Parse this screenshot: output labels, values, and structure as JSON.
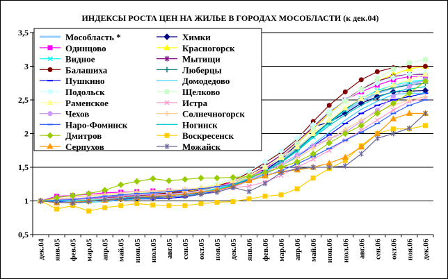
{
  "chart_data": {
    "type": "line",
    "title": "ИНДЕКСЫ РОСТА ЦЕН НА ЖИЛЬЕ В ГОРОДАХ МОСОБЛАСТИ (к дек.04)",
    "ylim": [
      0.5,
      3.5
    ],
    "yticks": [
      "0,5",
      "1",
      "1,5",
      "2",
      "2,5",
      "3",
      "3,5"
    ],
    "ytick_values": [
      0.5,
      1,
      1.5,
      2,
      2.5,
      3,
      3.5
    ],
    "grid": "horizontal",
    "legend_position": "top-left",
    "categories": [
      "дек.04",
      "янв.05",
      "фев.05",
      "мар.05",
      "апр.05",
      "май.05",
      "июн.05",
      "июл.05",
      "авг.05",
      "сен.05",
      "окт.05",
      "ноя.05",
      "дек.05",
      "янв.06",
      "фев.06",
      "мар.06",
      "апр.06",
      "май.06",
      "июн.06",
      "июл.06",
      "авг.06",
      "сен.06",
      "окт.06",
      "ноя.06",
      "дек.06"
    ],
    "series": [
      {
        "name": "Мособласть *",
        "color": "#99ccff",
        "marker": "none",
        "width": 3,
        "values": [
          1,
          1.01,
          1.02,
          1.04,
          1.06,
          1.08,
          1.1,
          1.11,
          1.12,
          1.14,
          1.17,
          1.2,
          1.26,
          1.35,
          1.47,
          1.6,
          1.78,
          1.98,
          2.16,
          2.33,
          2.48,
          2.6,
          2.68,
          2.74,
          2.8
        ]
      },
      {
        "name": "Химки",
        "color": "#000080",
        "marker": "diamond",
        "values": [
          1,
          1.0,
          1.0,
          1.01,
          1.02,
          1.03,
          1.04,
          1.05,
          1.06,
          1.08,
          1.12,
          1.16,
          1.25,
          1.32,
          1.45,
          1.62,
          1.84,
          2.1,
          2.17,
          2.3,
          2.45,
          2.55,
          2.62,
          2.63,
          2.64
        ]
      },
      {
        "name": "Одинцово",
        "color": "#ff00ff",
        "marker": "square",
        "values": [
          1,
          1.07,
          1.08,
          1.1,
          1.12,
          1.13,
          1.14,
          1.15,
          1.15,
          1.16,
          1.18,
          1.22,
          1.28,
          1.36,
          1.48,
          1.65,
          1.85,
          2.06,
          2.3,
          2.5,
          2.62,
          2.72,
          2.8,
          2.85,
          2.85
        ]
      },
      {
        "name": "Красногорск",
        "color": "#ffff00",
        "marker": "triangle",
        "values": [
          1,
          1.02,
          1.03,
          1.05,
          1.07,
          1.08,
          1.09,
          1.1,
          1.12,
          1.14,
          1.17,
          1.2,
          1.27,
          1.36,
          1.5,
          1.66,
          1.86,
          2.08,
          2.3,
          2.5,
          2.66,
          2.78,
          2.88,
          2.96,
          3.0
        ]
      },
      {
        "name": "Видное",
        "color": "#00ffff",
        "marker": "x",
        "values": [
          1,
          1.0,
          1.01,
          1.02,
          1.03,
          1.05,
          1.06,
          1.07,
          1.08,
          1.1,
          1.14,
          1.18,
          1.24,
          1.33,
          1.44,
          1.58,
          1.75,
          1.95,
          2.15,
          2.35,
          2.52,
          2.64,
          2.72,
          2.77,
          2.8
        ]
      },
      {
        "name": "Мытищи",
        "color": "#800080",
        "marker": "star",
        "values": [
          1,
          1.02,
          1.02,
          1.03,
          1.05,
          1.06,
          1.08,
          1.09,
          1.11,
          1.13,
          1.16,
          1.2,
          1.27,
          1.38,
          1.52,
          1.68,
          1.88,
          2.1,
          2.32,
          2.5,
          2.66,
          2.78,
          2.85,
          2.88,
          2.88
        ]
      },
      {
        "name": "Балашиха",
        "color": "#800000",
        "marker": "circle",
        "values": [
          1,
          1.0,
          1.01,
          1.02,
          1.04,
          1.06,
          1.08,
          1.1,
          1.12,
          1.15,
          1.18,
          1.22,
          1.3,
          1.42,
          1.57,
          1.72,
          1.92,
          2.18,
          2.42,
          2.62,
          2.8,
          2.92,
          2.98,
          3.0,
          3.0
        ]
      },
      {
        "name": "Люберцы",
        "color": "#008080",
        "marker": "plus",
        "values": [
          1,
          1.0,
          1.0,
          1.01,
          1.02,
          1.03,
          1.05,
          1.06,
          1.08,
          1.1,
          1.13,
          1.17,
          1.23,
          1.32,
          1.44,
          1.58,
          1.76,
          1.97,
          2.17,
          2.36,
          2.52,
          2.62,
          2.68,
          2.72,
          2.75
        ]
      },
      {
        "name": "Пушкино",
        "color": "#0000ff",
        "marker": "dash",
        "values": [
          1,
          0.99,
          1.0,
          1.0,
          1.01,
          1.02,
          1.03,
          1.03,
          1.04,
          1.06,
          1.1,
          1.15,
          1.22,
          1.3,
          1.4,
          1.52,
          1.66,
          1.82,
          1.98,
          2.15,
          2.3,
          2.42,
          2.5,
          2.55,
          2.6
        ]
      },
      {
        "name": "Домодедово",
        "color": "#33ccff",
        "marker": "none",
        "values": [
          1,
          0.98,
          0.97,
          0.98,
          0.99,
          1.01,
          1.03,
          1.04,
          1.06,
          1.08,
          1.11,
          1.16,
          1.22,
          1.3,
          1.4,
          1.52,
          1.66,
          1.84,
          2.02,
          2.2,
          2.36,
          2.48,
          2.58,
          2.6,
          2.6
        ]
      },
      {
        "name": "Подольск",
        "color": "#ccffff",
        "marker": "diamond",
        "values": [
          1,
          1.02,
          1.03,
          1.05,
          1.07,
          1.09,
          1.1,
          1.12,
          1.14,
          1.17,
          1.2,
          1.25,
          1.33,
          1.44,
          1.58,
          1.74,
          1.93,
          2.13,
          2.33,
          2.5,
          2.64,
          2.75,
          2.83,
          2.88,
          2.9
        ]
      },
      {
        "name": "Щелково",
        "color": "#ccffcc",
        "marker": "square",
        "values": [
          1,
          1.0,
          1.01,
          1.02,
          1.03,
          1.05,
          1.06,
          1.08,
          1.1,
          1.12,
          1.15,
          1.2,
          1.27,
          1.37,
          1.5,
          1.66,
          1.85,
          2.06,
          2.28,
          2.48,
          2.66,
          2.82,
          2.96,
          3.05,
          3.1
        ]
      },
      {
        "name": "Раменское",
        "color": "#ffff99",
        "marker": "triangle",
        "values": [
          1,
          1.03,
          1.05,
          1.07,
          1.09,
          1.1,
          1.12,
          1.13,
          1.15,
          1.17,
          1.2,
          1.24,
          1.3,
          1.38,
          1.5,
          1.64,
          1.8,
          2.0,
          2.2,
          2.38,
          2.52,
          2.62,
          2.72,
          2.8,
          2.88
        ]
      },
      {
        "name": "Истра",
        "color": "#ff99cc",
        "marker": "x",
        "values": [
          1,
          1.02,
          1.02,
          1.03,
          1.04,
          1.05,
          1.07,
          1.08,
          1.09,
          1.11,
          1.14,
          1.17,
          1.2,
          1.22,
          1.28,
          1.38,
          1.5,
          1.62,
          1.75,
          1.9,
          2.05,
          2.2,
          2.35,
          2.48,
          2.52
        ]
      },
      {
        "name": "Чехов",
        "color": "#cc99ff",
        "marker": "circle",
        "values": [
          1,
          1.02,
          1.03,
          1.05,
          1.06,
          1.08,
          1.09,
          1.1,
          1.1,
          1.11,
          1.13,
          1.15,
          1.2,
          1.3,
          1.42,
          1.55,
          1.68,
          1.82,
          1.92,
          2.02,
          2.18,
          2.35,
          2.55,
          2.7,
          2.8
        ]
      },
      {
        "name": "Солнечногорск",
        "color": "#ffcc99",
        "marker": "plus",
        "values": [
          1,
          1.03,
          1.05,
          1.08,
          1.1,
          1.12,
          1.14,
          1.15,
          1.16,
          1.17,
          1.19,
          1.22,
          1.26,
          1.33,
          1.42,
          1.52,
          1.64,
          1.78,
          1.92,
          2.06,
          2.2,
          2.32,
          2.42,
          2.5,
          2.55
        ]
      },
      {
        "name": "Наро-Фоминск",
        "color": "#3366ff",
        "marker": "dash",
        "values": [
          1,
          1.01,
          1.02,
          1.04,
          1.07,
          1.09,
          1.11,
          1.12,
          1.14,
          1.16,
          1.18,
          1.21,
          1.25,
          1.3,
          1.37,
          1.45,
          1.55,
          1.66,
          1.78,
          1.9,
          2.02,
          2.15,
          2.3,
          2.42,
          2.5
        ]
      },
      {
        "name": "Ногинск",
        "color": "#00cccc",
        "marker": "none",
        "values": [
          1,
          1.0,
          1.0,
          1.01,
          1.02,
          1.04,
          1.06,
          1.07,
          1.08,
          1.1,
          1.13,
          1.17,
          1.24,
          1.33,
          1.44,
          1.57,
          1.74,
          1.94,
          2.12,
          2.28,
          2.42,
          2.54,
          2.62,
          2.66,
          2.7
        ]
      },
      {
        "name": "Дмитров",
        "color": "#99cc00",
        "marker": "diamond",
        "values": [
          1,
          1.05,
          1.08,
          1.11,
          1.16,
          1.24,
          1.29,
          1.33,
          1.3,
          1.32,
          1.34,
          1.34,
          1.35,
          1.36,
          1.42,
          1.5,
          1.58,
          1.7,
          1.86,
          2.0,
          2.12,
          2.3,
          2.45,
          2.6,
          2.78
        ]
      },
      {
        "name": "Воскресенск",
        "color": "#ffcc00",
        "marker": "square",
        "values": [
          1,
          0.88,
          0.93,
          0.85,
          0.9,
          0.93,
          0.96,
          0.94,
          0.93,
          0.93,
          0.96,
          0.98,
          0.99,
          1.03,
          1.07,
          1.09,
          1.18,
          1.34,
          1.48,
          1.6,
          1.82,
          2.0,
          2.07,
          2.07,
          2.12
        ]
      },
      {
        "name": "Серпухов",
        "color": "#ff9900",
        "marker": "triangle",
        "values": [
          1,
          0.97,
          0.98,
          1.0,
          1.01,
          1.03,
          1.05,
          1.07,
          1.08,
          1.1,
          1.13,
          1.16,
          1.22,
          1.3,
          1.37,
          1.44,
          1.46,
          1.5,
          1.56,
          1.65,
          1.8,
          2.0,
          2.22,
          2.3,
          2.3
        ]
      },
      {
        "name": "Можайск",
        "color": "#666699",
        "marker": "star",
        "values": [
          1,
          0.98,
          0.97,
          0.99,
          1.02,
          1.03,
          1.05,
          1.05,
          1.06,
          1.07,
          1.1,
          1.13,
          1.2,
          1.14,
          1.26,
          1.42,
          1.48,
          1.5,
          1.5,
          1.52,
          1.7,
          1.93,
          2.0,
          2.08,
          2.3
        ]
      }
    ]
  }
}
